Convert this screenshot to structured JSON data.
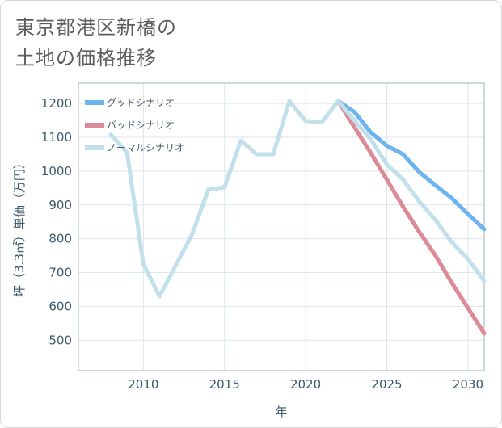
{
  "title_line1": "東京都港区新橋の",
  "title_line2": "土地の価格推移",
  "chart_data": {
    "type": "line",
    "title": "東京都港区新橋の土地の価格推移",
    "xlabel": "年",
    "ylabel": "坪（3.3㎡）単価（万円）",
    "xlim": [
      2006,
      2031
    ],
    "ylim": [
      410,
      1260
    ],
    "xticks": [
      2010,
      2015,
      2020,
      2025,
      2030
    ],
    "yticks": [
      500,
      600,
      700,
      800,
      900,
      1000,
      1100,
      1200
    ],
    "grid": true,
    "legend_position": "top-left",
    "series": [
      {
        "name": "グッドシナリオ",
        "color": "#6db4ee",
        "x": [
          2022,
          2023,
          2024,
          2025,
          2026,
          2027,
          2028,
          2029,
          2030,
          2031
        ],
        "y": [
          1207,
          1175,
          1115,
          1075,
          1050,
          997,
          958,
          920,
          873,
          828
        ]
      },
      {
        "name": "バッドシナリオ",
        "color": "#dc8a95",
        "x": [
          2022,
          2023,
          2024,
          2025,
          2026,
          2027,
          2028,
          2029,
          2030,
          2031
        ],
        "y": [
          1207,
          1130,
          1055,
          975,
          895,
          820,
          750,
          670,
          595,
          520
        ]
      },
      {
        "name": "ノーマルシナリオ",
        "color": "#c2dfec",
        "x": [
          2008,
          2009,
          2010,
          2011,
          2013,
          2014,
          2015,
          2016,
          2017,
          2018,
          2019,
          2020,
          2021,
          2022,
          2023,
          2024,
          2025,
          2026,
          2027,
          2028,
          2029,
          2030,
          2031
        ],
        "y": [
          1108,
          1055,
          725,
          630,
          813,
          945,
          952,
          1090,
          1050,
          1050,
          1207,
          1148,
          1145,
          1207,
          1150,
          1095,
          1020,
          975,
          910,
          855,
          790,
          740,
          675
        ]
      }
    ]
  }
}
